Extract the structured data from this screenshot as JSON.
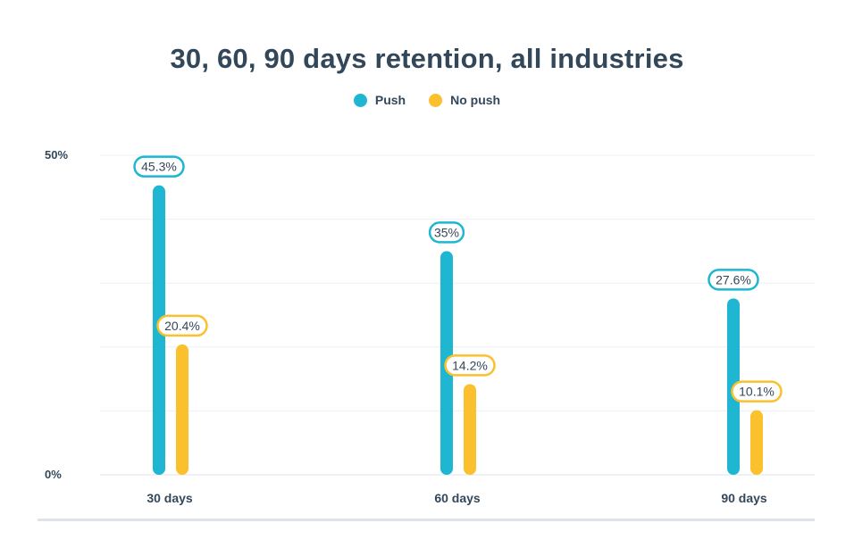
{
  "chart_data": {
    "type": "bar",
    "title": "30, 60, 90 days retention, all industries",
    "categories": [
      "30 days",
      "60 days",
      "90 days"
    ],
    "series": [
      {
        "name": "Push",
        "values": [
          45.3,
          35,
          27.6
        ],
        "labels": [
          "45.3%",
          "35%",
          "27.6%"
        ],
        "color": "#1fb6d2"
      },
      {
        "name": "No push",
        "values": [
          20.4,
          14.2,
          10.1
        ],
        "labels": [
          "20.4%",
          "14.2%",
          "10.1%"
        ],
        "color": "#fbc02d"
      }
    ],
    "ylim": [
      0,
      50
    ],
    "yticks": [
      0,
      50
    ],
    "ytick_labels": [
      "0%",
      "50%"
    ],
    "gridlines": 5,
    "grid": true,
    "legend": "top-center",
    "xlabel": "",
    "ylabel": ""
  }
}
